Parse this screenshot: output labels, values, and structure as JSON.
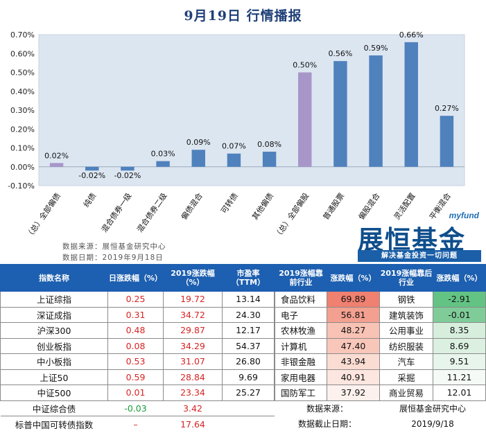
{
  "header": {
    "title": "9月19日  行情播报"
  },
  "chart_data": {
    "type": "bar",
    "categories": [
      "（总）全部偏债",
      "纯债",
      "混合债券一级",
      "混合债券二级",
      "偏债混合",
      "可转债",
      "其他偏债",
      "（总）全部偏股",
      "普通股票",
      "偏股混合",
      "灵活配置",
      "平衡混合"
    ],
    "values": [
      0.02,
      -0.02,
      -0.02,
      0.03,
      0.09,
      0.07,
      0.08,
      0.5,
      0.56,
      0.59,
      0.66,
      0.27
    ],
    "data_labels": [
      "0.02%",
      "-0.02%",
      "-0.02%",
      "0.03%",
      "0.09%",
      "0.07%",
      "0.08%",
      "0.50%",
      "0.56%",
      "0.59%",
      "0.66%",
      "0.27%"
    ],
    "highlight_colors": {
      "summary": "#a896c9",
      "normal": "#4f81bd"
    },
    "ylim": [
      -0.1,
      0.7
    ],
    "yticks": [
      -0.1,
      0.0,
      0.1,
      0.2,
      0.3,
      0.4,
      0.5,
      0.6,
      0.7
    ],
    "ytick_labels": [
      "-0.10%",
      "0.00%",
      "0.10%",
      "0.20%",
      "0.30%",
      "0.40%",
      "0.50%",
      "0.60%",
      "0.70%"
    ],
    "grid": false,
    "plot_background": "#dce6f1"
  },
  "source": {
    "line1": "数据来源：展恒基金研究中心",
    "line2": "数据日期：2019年9月18日"
  },
  "logo": {
    "myfund": "myfund",
    "name": "展恒基金",
    "slogan": "解决基金投资一切问题"
  },
  "index_table": {
    "headers": [
      "指数名称",
      "日涨跌幅（%）",
      "2019涨跌幅（%）",
      "市盈率（TTM）"
    ],
    "rows": [
      {
        "name": "上证综指",
        "day": "0.25",
        "ytd": "19.72",
        "pe": "13.14"
      },
      {
        "name": "深证成指",
        "day": "0.31",
        "ytd": "34.72",
        "pe": "24.30"
      },
      {
        "name": "沪深300",
        "day": "0.48",
        "ytd": "29.87",
        "pe": "12.17"
      },
      {
        "name": "创业板指",
        "day": "0.08",
        "ytd": "34.29",
        "pe": "54.37"
      },
      {
        "name": "中小板指",
        "day": "0.53",
        "ytd": "31.07",
        "pe": "26.80"
      },
      {
        "name": "上证50",
        "day": "0.59",
        "ytd": "28.84",
        "pe": "9.69"
      },
      {
        "name": "中证500",
        "day": "0.01",
        "ytd": "23.34",
        "pe": "25.27"
      },
      {
        "name": "中证综合债",
        "day": "-0.03",
        "ytd": "3.42",
        "pe": ""
      },
      {
        "name": "标普中国可转债指数",
        "day": "–",
        "ytd": "17.64",
        "pe": ""
      }
    ]
  },
  "industry_table": {
    "headers": [
      "2019涨幅靠前行业",
      "涨跌幅（%）",
      "2019涨幅靠后行业",
      "涨跌幅（%）"
    ],
    "rows": [
      {
        "top": "食品饮料",
        "top_val": "69.89",
        "top_color": "#f08070",
        "bot": "钢铁",
        "bot_val": "-2.91",
        "bot_color": "#63c384"
      },
      {
        "top": "电子",
        "top_val": "56.81",
        "top_color": "#f4a090",
        "bot": "建筑装饰",
        "bot_val": "-0.01",
        "bot_color": "#7fcc98"
      },
      {
        "top": "农林牧渔",
        "top_val": "48.27",
        "top_color": "#f8c2b4",
        "bot": "公用事业",
        "bot_val": "8.35",
        "bot_color": "#d7eedd"
      },
      {
        "top": "计算机",
        "top_val": "47.40",
        "top_color": "#f9c7ba",
        "bot": "纺织服装",
        "bot_val": "8.69",
        "bot_color": "#dcf0e1"
      },
      {
        "top": "非银金融",
        "top_val": "43.94",
        "top_color": "#fbdcd3",
        "bot": "汽车",
        "bot_val": "9.51",
        "bot_color": "#e8f5ec"
      },
      {
        "top": "家用电器",
        "top_val": "40.91",
        "top_color": "#fce6df",
        "bot": "采掘",
        "bot_val": "11.21",
        "bot_color": "#f5faf6"
      },
      {
        "top": "国防军工",
        "top_val": "37.92",
        "top_color": "#fdf1ed",
        "bot": "商业贸易",
        "bot_val": "12.01",
        "bot_color": "#ffffff"
      }
    ],
    "footer": [
      {
        "k": "数据来源：",
        "v": "展恒基金研究中心"
      },
      {
        "k": "数据截止日期：",
        "v": "2019/9/18"
      }
    ]
  }
}
